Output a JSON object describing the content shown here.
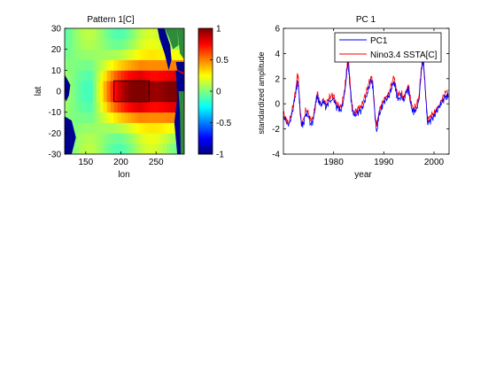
{
  "colorbar": {
    "ticks": [
      1,
      0.5,
      0,
      -0.5,
      -1
    ],
    "tick_labels": [
      "1",
      "0.5",
      "0",
      "-0.5",
      "-1"
    ],
    "range": [
      -1,
      1
    ],
    "colormap": "jet"
  },
  "chart_data": [
    {
      "type": "heatmap",
      "title": "Pattern 1[C]",
      "xlabel": "lon",
      "ylabel": "lat",
      "xlim": [
        120,
        290
      ],
      "ylim": [
        -30,
        30
      ],
      "xticks": [
        150,
        200,
        250
      ],
      "yticks": [
        30,
        20,
        10,
        0,
        -10,
        -20,
        -30
      ],
      "colorbar_range": [
        -1,
        1
      ],
      "grid_resolution_deg": 5,
      "pattern": {
        "max_value": 1.0,
        "max_center_lon": 228,
        "max_center_lat": 0,
        "lat_spread": 9,
        "west_edge_lon": 160,
        "background_value": 0.05
      },
      "box": {
        "lon": [
          190,
          240
        ],
        "lat": [
          -5,
          5
        ]
      },
      "land_mask_color": "#2e8b3a"
    },
    {
      "type": "line",
      "title": "PC 1",
      "xlabel": "year",
      "ylabel": "standardized amplitude",
      "xlim": [
        1970,
        2003
      ],
      "ylim": [
        -4,
        6
      ],
      "xticks": [
        1980,
        1990,
        2000
      ],
      "yticks": [
        6,
        4,
        2,
        0,
        -2,
        -4
      ],
      "legend": "top-right",
      "series": [
        {
          "name": "PC1",
          "color": "#0000ff",
          "x": [
            1970.0,
            1970.5,
            1971.0,
            1971.5,
            1972.0,
            1972.5,
            1972.8,
            1973.0,
            1973.3,
            1973.6,
            1974.0,
            1974.5,
            1975.0,
            1975.5,
            1976.0,
            1976.5,
            1976.8,
            1977.0,
            1977.5,
            1978.0,
            1978.5,
            1979.0,
            1979.5,
            1980.0,
            1980.5,
            1981.0,
            1981.5,
            1982.0,
            1982.4,
            1982.8,
            1983.0,
            1983.3,
            1983.7,
            1984.0,
            1984.5,
            1985.0,
            1985.5,
            1986.0,
            1986.5,
            1987.0,
            1987.5,
            1987.8,
            1988.0,
            1988.3,
            1988.6,
            1989.0,
            1989.5,
            1990.0,
            1990.5,
            1991.0,
            1991.5,
            1992.0,
            1992.4,
            1992.8,
            1993.0,
            1993.5,
            1994.0,
            1994.5,
            1994.9,
            1995.2,
            1995.6,
            1996.0,
            1996.5,
            1997.0,
            1997.4,
            1997.7,
            1997.9,
            1998.1,
            1998.4,
            1998.7,
            1999.0,
            1999.5,
            2000.0,
            2000.5,
            2001.0,
            2001.5,
            2002.0,
            2002.5,
            2002.9
          ],
          "values": [
            -1.0,
            -1.4,
            -1.8,
            -1.2,
            -0.2,
            1.0,
            1.8,
            1.5,
            -0.5,
            -1.8,
            -1.5,
            -0.8,
            -1.0,
            -1.7,
            -1.2,
            0.2,
            0.6,
            0.3,
            -0.2,
            0.2,
            -0.3,
            0.2,
            0.3,
            0.5,
            -0.2,
            -0.4,
            -0.6,
            0.3,
            1.5,
            3.2,
            2.7,
            1.2,
            -0.6,
            -0.8,
            -0.9,
            -0.6,
            -0.5,
            0.0,
            0.6,
            1.3,
            1.8,
            1.4,
            0.3,
            -1.3,
            -2.2,
            -1.0,
            -0.4,
            0.2,
            0.4,
            0.6,
            1.2,
            1.8,
            1.0,
            0.3,
            0.4,
            0.6,
            0.2,
            0.9,
            1.2,
            0.3,
            -0.4,
            -0.6,
            -0.4,
            0.3,
            2.2,
            3.4,
            3.3,
            2.3,
            0.2,
            -1.5,
            -1.5,
            -1.2,
            -1.0,
            -0.6,
            -0.3,
            0.0,
            0.4,
            0.7,
            0.6
          ]
        },
        {
          "name": "Nino3.4 SSTA[C]",
          "color": "#ff0000",
          "x": [
            1970.0,
            1970.5,
            1971.0,
            1971.5,
            1972.0,
            1972.5,
            1972.8,
            1973.0,
            1973.3,
            1973.6,
            1974.0,
            1974.5,
            1975.0,
            1975.5,
            1976.0,
            1976.5,
            1976.8,
            1977.0,
            1977.5,
            1978.0,
            1978.5,
            1979.0,
            1979.5,
            1980.0,
            1980.5,
            1981.0,
            1981.5,
            1982.0,
            1982.4,
            1982.8,
            1983.0,
            1983.3,
            1983.7,
            1984.0,
            1984.5,
            1985.0,
            1985.5,
            1986.0,
            1986.5,
            1987.0,
            1987.5,
            1987.8,
            1988.0,
            1988.3,
            1988.6,
            1989.0,
            1989.5,
            1990.0,
            1990.5,
            1991.0,
            1991.5,
            1992.0,
            1992.4,
            1992.8,
            1993.0,
            1993.5,
            1994.0,
            1994.5,
            1994.9,
            1995.2,
            1995.6,
            1996.0,
            1996.5,
            1997.0,
            1997.4,
            1997.7,
            1997.9,
            1998.1,
            1998.4,
            1998.7,
            1999.0,
            1999.5,
            2000.0,
            2000.5,
            2001.0,
            2001.5,
            2002.0,
            2002.5,
            2002.9
          ],
          "values": [
            -0.8,
            -1.2,
            -1.5,
            -1.0,
            0.0,
            1.3,
            2.4,
            1.8,
            -0.3,
            -1.6,
            -1.2,
            -0.5,
            -0.8,
            -1.4,
            -1.0,
            0.4,
            0.9,
            0.5,
            0.0,
            0.4,
            -0.1,
            0.4,
            0.6,
            0.7,
            0.0,
            -0.2,
            -0.3,
            0.6,
            1.8,
            3.6,
            3.3,
            1.6,
            -0.3,
            -0.6,
            -0.5,
            -0.3,
            -0.3,
            0.3,
            0.9,
            1.6,
            2.1,
            1.8,
            0.6,
            -1.0,
            -1.8,
            -0.7,
            -0.1,
            0.4,
            0.6,
            0.8,
            1.5,
            2.1,
            1.4,
            0.6,
            0.7,
            0.8,
            0.5,
            1.1,
            1.5,
            0.6,
            -0.2,
            -0.4,
            -0.1,
            0.6,
            2.6,
            3.5,
            3.2,
            2.0,
            0.5,
            -1.2,
            -1.2,
            -0.9,
            -0.8,
            -0.4,
            -0.1,
            0.3,
            0.7,
            1.0,
            1.1
          ]
        }
      ]
    }
  ]
}
